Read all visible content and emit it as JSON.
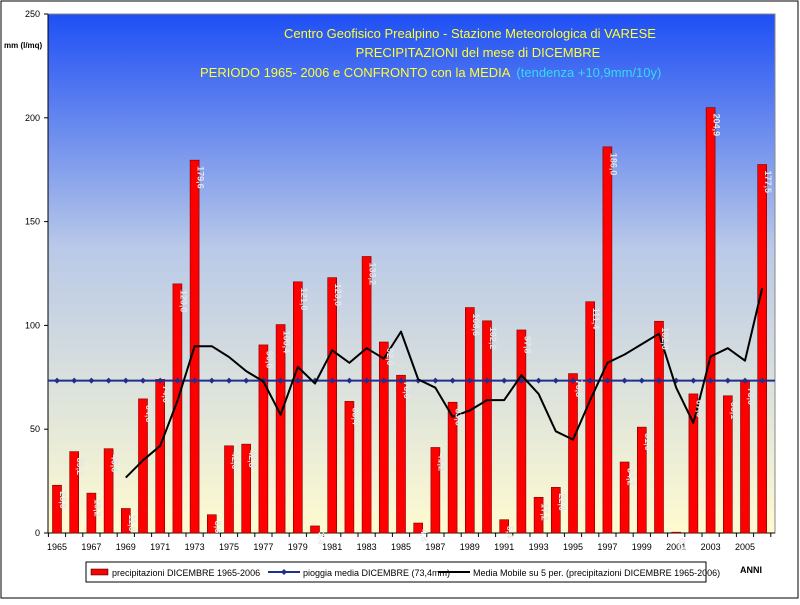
{
  "chart_data": {
    "type": "bar",
    "title_lines": [
      "Centro Geofisico Prealpino - Stazione Meteorologica di VARESE",
      "PRECIPITAZIONI del mese di DICEMBRE",
      "PERIODO 1965- 2006 e CONFRONTO con la MEDIA"
    ],
    "trend_note": "(tendenza +10,9mm/10y)",
    "ylabel": "mm (l/mq)",
    "xlabel": "ANNI",
    "ylim": [
      0,
      250
    ],
    "y_ticks": [
      0,
      50,
      100,
      150,
      200,
      250
    ],
    "x_tick_labels": [
      "1965",
      "1967",
      "1969",
      "1971",
      "1973",
      "1975",
      "1977",
      "1979",
      "1981",
      "1983",
      "1985",
      "1987",
      "1989",
      "1991",
      "1993",
      "1995",
      "1997",
      "1999",
      "2001",
      "2003",
      "2005"
    ],
    "categories": [
      "1965",
      "1966",
      "1967",
      "1968",
      "1969",
      "1970",
      "1971",
      "1972",
      "1973",
      "1974",
      "1975",
      "1976",
      "1977",
      "1978",
      "1979",
      "1980",
      "1981",
      "1982",
      "1983",
      "1984",
      "1985",
      "1986",
      "1987",
      "1988",
      "1989",
      "1990",
      "1991",
      "1992",
      "1993",
      "1994",
      "1995",
      "1996",
      "1997",
      "1998",
      "1999",
      "2000",
      "2001",
      "2002",
      "2003",
      "2004",
      "2005",
      "2006"
    ],
    "series": [
      {
        "name": "precipitazioni DICEMBRE 1965-2006",
        "kind": "bar",
        "color": "#ff0000",
        "values": [
          23.0,
          39.2,
          19.2,
          40.6,
          11.8,
          64.6,
          74.0,
          120.0,
          179.6,
          8.8,
          42.0,
          42.8,
          90.6,
          100.4,
          121.0,
          3.4,
          123.0,
          63.4,
          133.2,
          92.0,
          76.0,
          4.8,
          41.2,
          63.0,
          108.6,
          102.2,
          6.4,
          97.8,
          17.2,
          22.0,
          76.8,
          111.4,
          186.0,
          34.2,
          51.0,
          102.0,
          0.4,
          67.0,
          204.9,
          66.1,
          73.0,
          177.5
        ],
        "value_labels": [
          "23,0",
          "39,2",
          "19,2",
          "40,6",
          "11,8",
          "64,6",
          "74,0",
          "120,0",
          "179,6",
          "8,8",
          "42,0",
          "42,8",
          "90,6",
          "100,4",
          "121,0",
          "3,4",
          "123,0",
          "63,4",
          "133,2",
          "92,0",
          "76,0",
          "4,8",
          "41,2",
          "63,0",
          "108,6",
          "102,2",
          "6,4",
          "97,8",
          "17,2",
          "22,0",
          "76,8",
          "111,4",
          "186,0",
          "34,2",
          "51,0",
          "102,0",
          "0,4",
          "67,0",
          "204,9",
          "66,1",
          "73,0",
          "177,5"
        ]
      },
      {
        "name": "pioggia media DICEMBRE (73,4mm)",
        "kind": "line-marker",
        "color": "#1f2f8f",
        "value": 73.4
      },
      {
        "name": "Media Mobile su 5 per. (precipitazioni DICEMBRE 1965-2006)",
        "kind": "line",
        "color": "#000000",
        "values": [
          null,
          null,
          null,
          null,
          26.7,
          35.0,
          42.0,
          63.6,
          90.0,
          90.0,
          84.8,
          78.0,
          73.0,
          57.0,
          80.0,
          72.0,
          88.0,
          82.0,
          89.0,
          84.0,
          97.0,
          74.0,
          70.0,
          56.0,
          59.0,
          64.0,
          64.0,
          76.0,
          67.0,
          49.0,
          45.0,
          64.0,
          82.0,
          86.0,
          91.0,
          96.0,
          70.0,
          53.0,
          85.0,
          89.0,
          83.0,
          118.0
        ]
      }
    ],
    "legend_position": "bottom",
    "grid": false,
    "colors": {
      "bg_top": "#1e4ff5",
      "bg_bottom": "#fffbd0",
      "title": "#ffff33",
      "trend_note": "#33ddee",
      "bar_label": "#e6e6e6"
    }
  }
}
